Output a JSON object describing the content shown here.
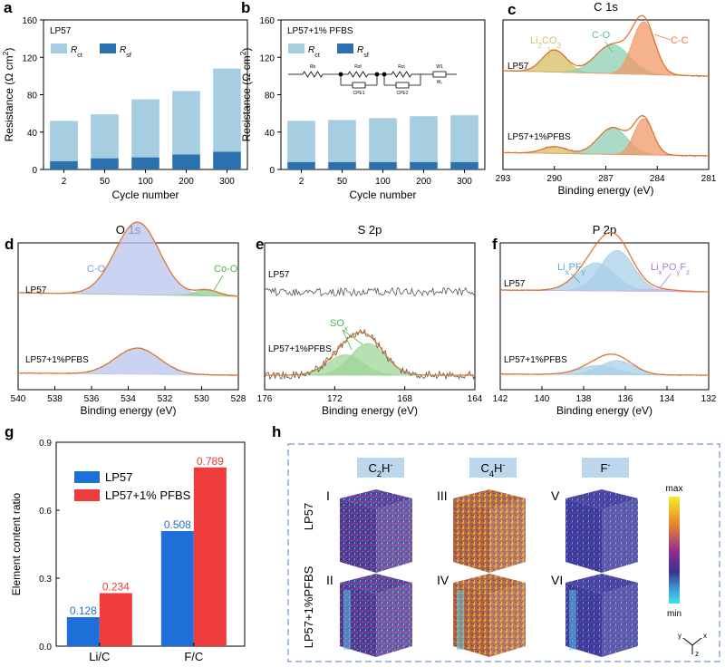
{
  "chart_data": [
    {
      "id": "a",
      "panel_label": "a",
      "type": "bar",
      "stacked": true,
      "title": "LP57",
      "categories": [
        "2",
        "50",
        "100",
        "200",
        "300"
      ],
      "series": [
        {
          "name": "Rct",
          "label_main": "R",
          "label_sub": "ct",
          "color": "#a6cde0",
          "values": [
            43,
            47,
            62,
            68,
            89
          ]
        },
        {
          "name": "Rsf",
          "label_main": "R",
          "label_sub": "sf",
          "color": "#2b71ad",
          "values": [
            9,
            12,
            13,
            16,
            19
          ]
        }
      ],
      "xlabel": "Cycle number",
      "ylabel": "Resistance (Ω cm²)",
      "ylabel_main": "Resistance (Ω cm",
      "ylabel_sup": "2",
      "ylabel_end": ")",
      "ylim": [
        0,
        160
      ],
      "yticks": [
        "0",
        "40",
        "80",
        "120",
        "160"
      ]
    },
    {
      "id": "b",
      "panel_label": "b",
      "type": "bar",
      "stacked": true,
      "title": "LP57+1% PFBS",
      "categories": [
        "2",
        "50",
        "100",
        "200",
        "300"
      ],
      "series": [
        {
          "name": "Rct",
          "label_main": "R",
          "label_sub": "ct",
          "color": "#a6cde0",
          "values": [
            44,
            45,
            47,
            49,
            50
          ]
        },
        {
          "name": "Rsf",
          "label_main": "R",
          "label_sub": "sf",
          "color": "#2b71ad",
          "values": [
            8,
            8,
            8,
            8,
            8
          ]
        }
      ],
      "xlabel": "Cycle number",
      "ylabel": "Resistance (Ω cm²)",
      "ylabel_main": "Resistance (Ω cm",
      "ylabel_sup": "2",
      "ylabel_end": ")",
      "ylim": [
        0,
        160
      ],
      "yticks": [
        "0",
        "40",
        "80",
        "120",
        "160"
      ],
      "circuit_labels": [
        "Rb",
        "Rsf",
        "CPE1",
        "Rct",
        "CPE2",
        "W1",
        "W₀"
      ]
    },
    {
      "id": "c",
      "panel_label": "c",
      "type": "line",
      "title": "C 1s",
      "xlabel": "Binding energy (eV)",
      "xlim": [
        293,
        281
      ],
      "xticks": [
        "293",
        "290",
        "287",
        "284",
        "281"
      ],
      "traces": [
        {
          "label": "LP57",
          "peaks": [
            {
              "name": "Li2CO3",
              "center": 290.0,
              "height": 0.42,
              "width": 0.7,
              "color": "#d6bf5e"
            },
            {
              "name": "C-O",
              "center": 286.6,
              "height": 0.55,
              "width": 1.0,
              "color": "#8dcfb3"
            },
            {
              "name": "C-C",
              "center": 284.8,
              "height": 1.0,
              "width": 0.65,
              "color": "#f09a68"
            }
          ]
        },
        {
          "label": "LP57+1%PFBS",
          "peaks": [
            {
              "name": "Li2CO3",
              "center": 290.0,
              "height": 0.18,
              "width": 0.7,
              "color": "#d6bf5e"
            },
            {
              "name": "C-O",
              "center": 286.6,
              "height": 0.7,
              "width": 0.85,
              "color": "#8dcfb3"
            },
            {
              "name": "C-C",
              "center": 284.8,
              "height": 0.95,
              "width": 0.55,
              "color": "#f09a68"
            }
          ]
        }
      ],
      "annotations": [
        {
          "text": "Li",
          "sub": "2",
          "text2": "CO",
          "sub2": "3",
          "color": "#d6bf5e"
        },
        {
          "text": "C-O",
          "color": "#5fbf95"
        },
        {
          "text": "C-C",
          "color": "#f07a40"
        }
      ]
    },
    {
      "id": "d",
      "panel_label": "d",
      "type": "line",
      "title": "O 1s",
      "xlabel": "Binding energy (eV)",
      "xlim": [
        540,
        528
      ],
      "xticks": [
        "540",
        "538",
        "536",
        "534",
        "532",
        "530",
        "528"
      ],
      "traces": [
        {
          "label": "LP57",
          "peaks": [
            {
              "name": "C-O",
              "center": 533.5,
              "height": 1.0,
              "width": 1.2,
              "color": "#b8c6ee"
            },
            {
              "name": "Co-O",
              "center": 529.7,
              "height": 0.08,
              "width": 0.6,
              "color": "#8fd18f"
            }
          ]
        },
        {
          "label": "LP57+1%PFBS",
          "peaks": [
            {
              "name": "C-O",
              "center": 533.5,
              "height": 0.6,
              "width": 1.2,
              "color": "#b8c6ee"
            }
          ]
        }
      ],
      "annotations": [
        {
          "text": "C-O",
          "color": "#7d96dc"
        },
        {
          "text": "Co-O",
          "color": "#4cb34c"
        }
      ]
    },
    {
      "id": "e",
      "panel_label": "e",
      "type": "line",
      "title": "S 2p",
      "xlabel": "Binding energy (eV)",
      "xlim": [
        176,
        164
      ],
      "xticks": [
        "176",
        "172",
        "168",
        "164"
      ],
      "traces": [
        {
          "label": "LP57",
          "peaks": []
        },
        {
          "label": "LP57+1%PFBS",
          "peaks": [
            {
              "name": "SOx",
              "center": 171.4,
              "height": 0.45,
              "width": 1.0,
              "color": "#9fd69a"
            },
            {
              "name": "SOx",
              "center": 170.1,
              "height": 0.7,
              "width": 1.0,
              "color": "#9fd69a"
            }
          ]
        }
      ],
      "annotations": [
        {
          "text": "SO",
          "sub": "x",
          "color": "#4cb34c"
        }
      ]
    },
    {
      "id": "f",
      "panel_label": "f",
      "type": "line",
      "title": "P 2p",
      "xlabel": "Binding energy (eV)",
      "xlim": [
        142,
        132
      ],
      "xticks": [
        "142",
        "140",
        "138",
        "136",
        "134",
        "132"
      ],
      "traces": [
        {
          "label": "LP57",
          "peaks": [
            {
              "name": "LixPFy",
              "center": 137.4,
              "height": 0.55,
              "width": 0.9,
              "color": "#a9cfe8"
            },
            {
              "name": "LixPFy",
              "center": 136.4,
              "height": 0.8,
              "width": 0.8,
              "color": "#a9cfe8"
            },
            {
              "name": "LixPOyFz",
              "center": 134.5,
              "height": 0.04,
              "width": 0.9,
              "color": "#d2b3e6"
            }
          ]
        },
        {
          "label": "LP57+1%PFBS",
          "peaks": [
            {
              "name": "LixPFy",
              "center": 137.3,
              "height": 0.18,
              "width": 0.9,
              "color": "#a9cfe8"
            },
            {
              "name": "LixPFy",
              "center": 136.4,
              "height": 0.28,
              "width": 0.8,
              "color": "#a9cfe8"
            }
          ]
        }
      ],
      "annotations": [
        {
          "text": "Li",
          "sub": "x",
          "text2": "PF",
          "sub2": "y",
          "color": "#5ea6d8"
        },
        {
          "text": "Li",
          "sub": "x",
          "text2": "PO",
          "sub2": "y",
          "text3": "F",
          "sub3": "z",
          "color": "#a57fd1"
        }
      ]
    },
    {
      "id": "g",
      "panel_label": "g",
      "type": "bar",
      "categories": [
        "Li/C",
        "F/C"
      ],
      "series": [
        {
          "name": "LP57",
          "color": "#1f6fd8",
          "label_color": "#1f6fd8",
          "values": [
            0.128,
            0.508
          ],
          "labels": [
            "0.128",
            "0.508"
          ]
        },
        {
          "name": "LP57+1% PFBS",
          "color": "#ee3b3b",
          "label_color": "#ee3b3b",
          "values": [
            0.234,
            0.789
          ],
          "labels": [
            "0.234",
            "0.789"
          ]
        }
      ],
      "xlabel": "",
      "ylabel": "Element content ratio",
      "ylim": [
        0,
        0.9
      ],
      "yticks": [
        "0.0",
        "0.3",
        "0.6",
        "0.9"
      ],
      "legend_position": "upper-left"
    },
    {
      "id": "h",
      "panel_label": "h",
      "type": "heatmap",
      "columns": [
        {
          "main": "C",
          "sub1": "2",
          "mid": "H",
          "sup": "-"
        },
        {
          "main": "C",
          "sub1": "4",
          "mid": "H",
          "sup": "-"
        },
        {
          "main": "F",
          "sub1": "",
          "mid": "",
          "sup": "-"
        }
      ],
      "rows": [
        "LP57",
        "LP57+1%PFBS"
      ],
      "cube_labels": [
        "I",
        "III",
        "V",
        "II",
        "IV",
        "VI"
      ],
      "colorbar": {
        "max_label": "max",
        "min_label": "min",
        "colors": [
          "#f4ea2a",
          "#e8892c",
          "#9a2f8e",
          "#3b2f8f",
          "#3aa8d8",
          "#40e0f0"
        ]
      },
      "axes_labels": [
        "x",
        "y",
        "z"
      ]
    }
  ]
}
